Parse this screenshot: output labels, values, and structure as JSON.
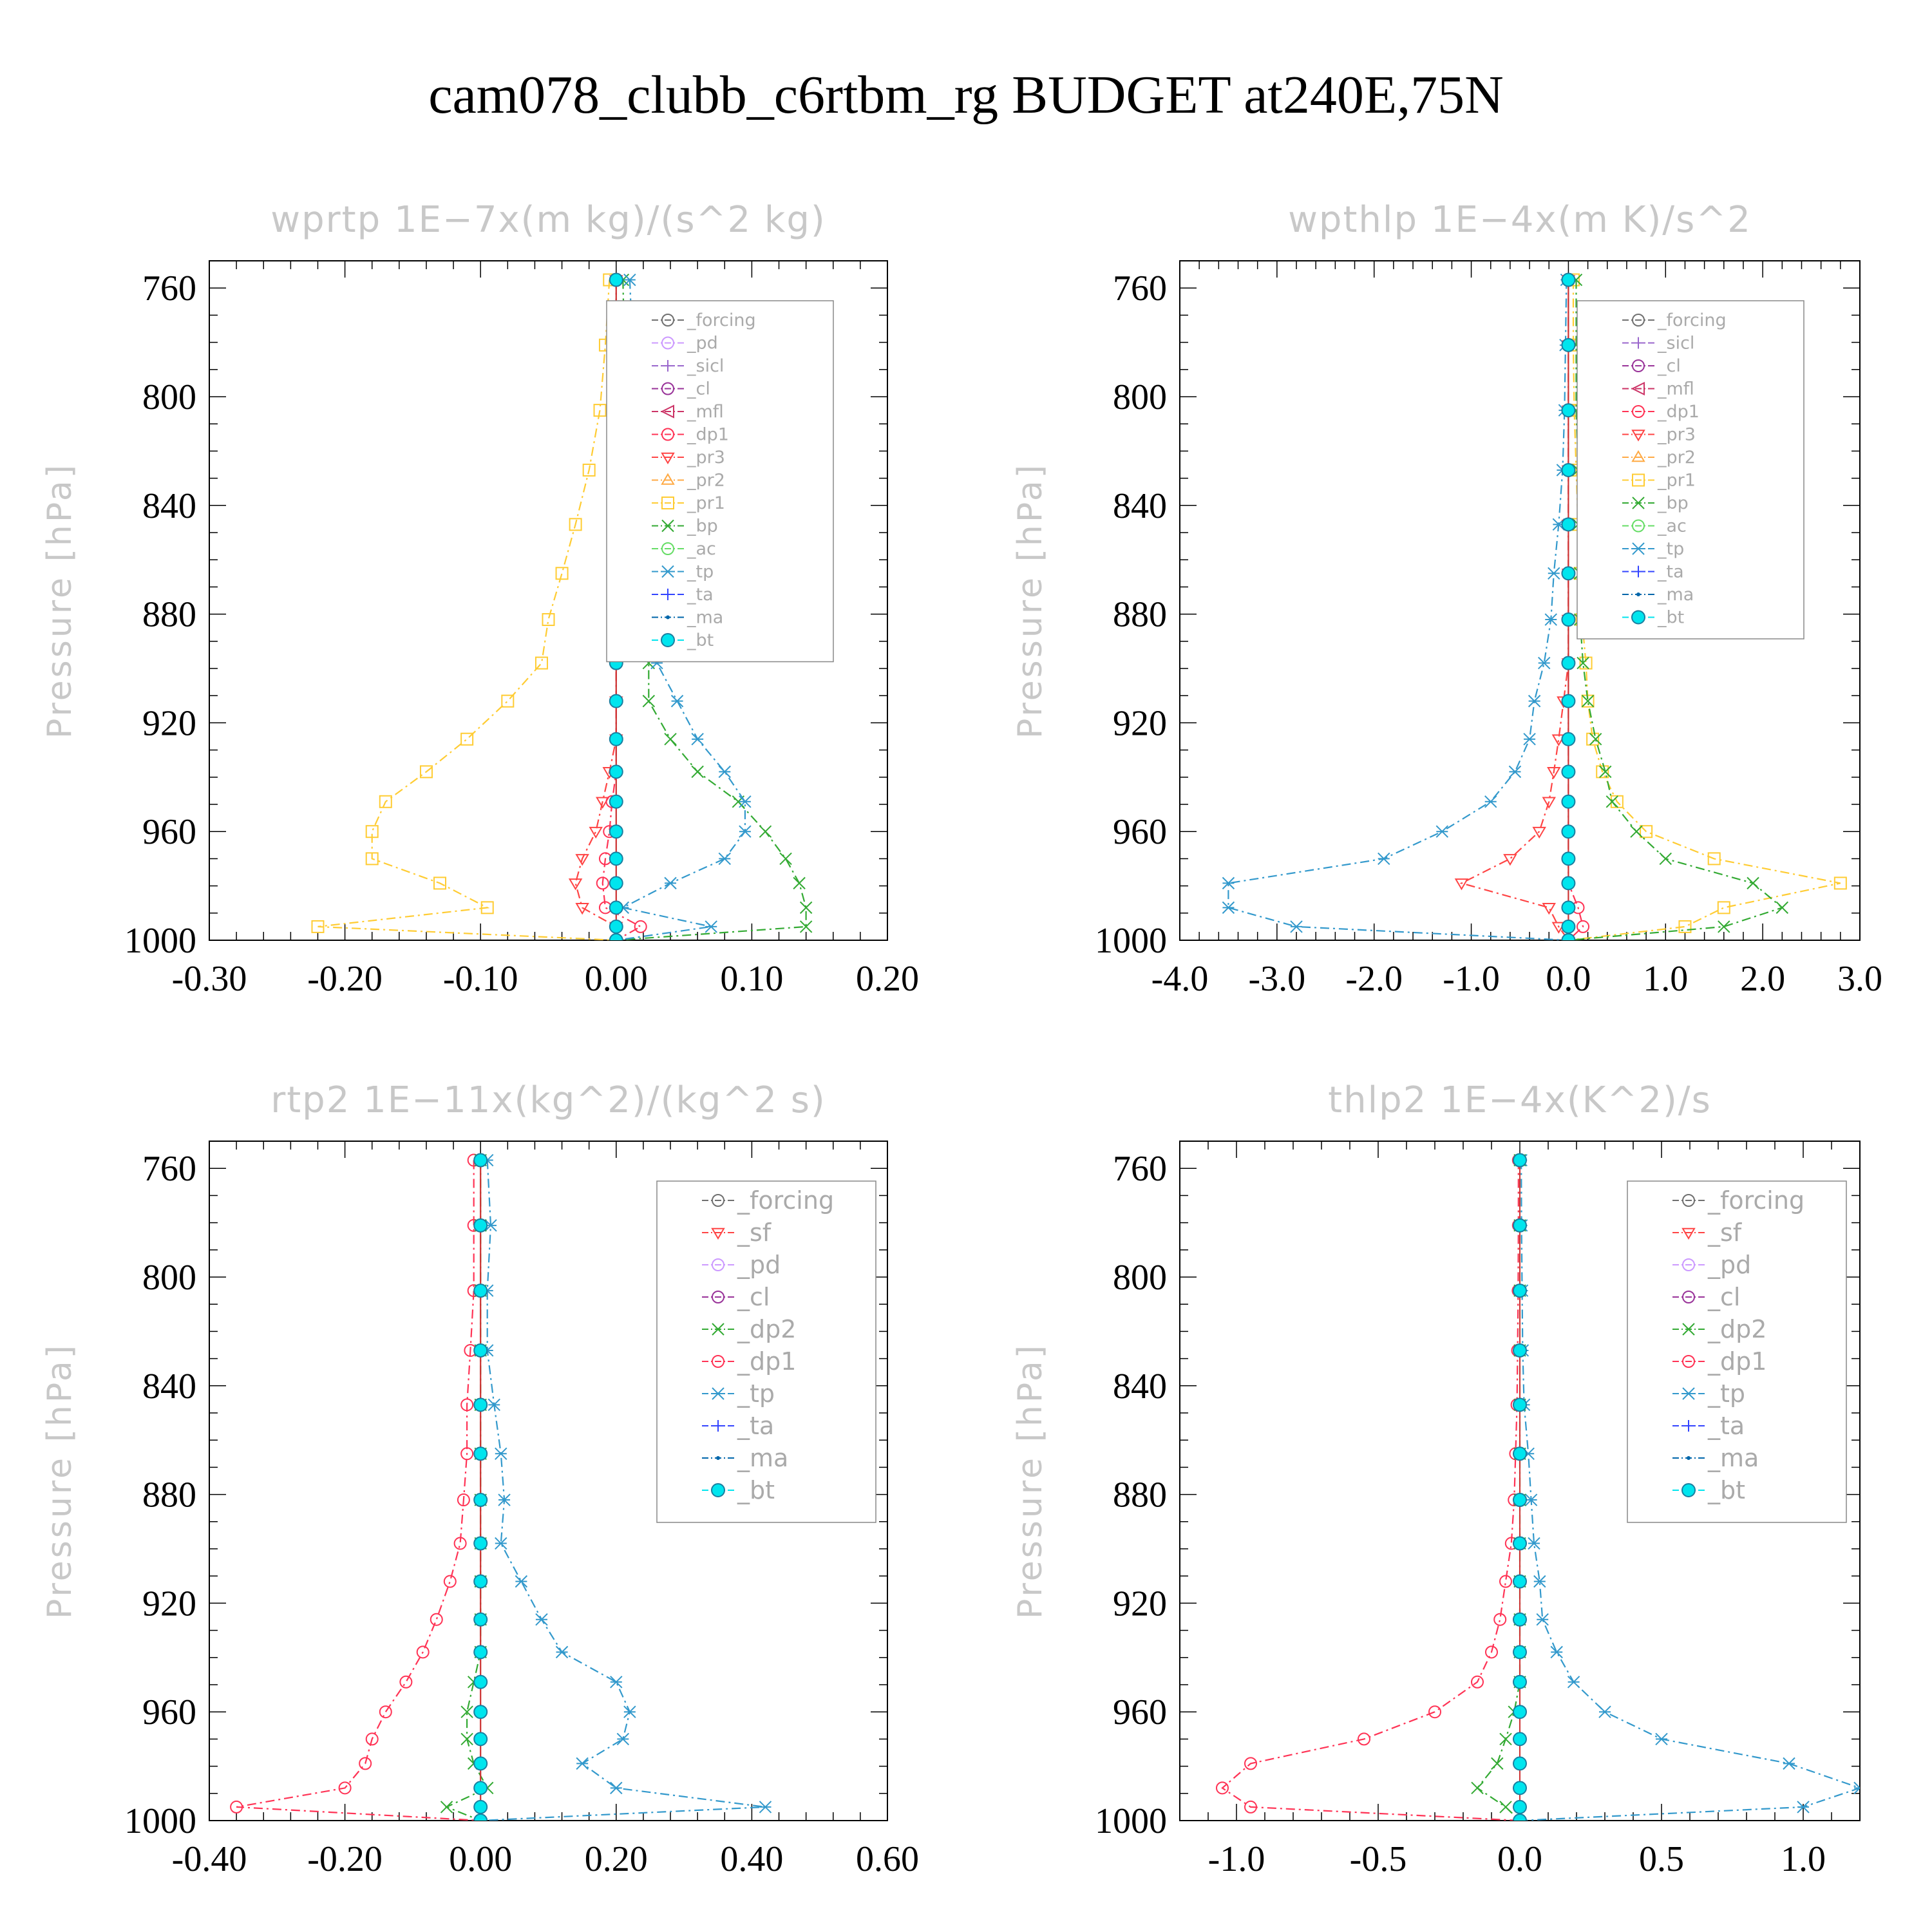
{
  "figure_title": "cam078_clubb_c6rtbm_rg  BUDGET at240E,75N",
  "colors": {
    "_forcing": "#707070",
    "_pd": "#cc99ff",
    "_sicl": "#9966cc",
    "_cl": "#993399",
    "_mfl": "#cc3366",
    "_dp1": "#ff3355",
    "_pr3": "#ff4444",
    "_pr2": "#ffaa44",
    "_pr1": "#ffcc33",
    "_bp": "#33aa33",
    "_ac": "#66dd66",
    "_tp": "#3399cc",
    "_ta": "#3344ff",
    "_ma": "#0066aa",
    "_bt": "#00e5ee",
    "_sf": "#ff4444",
    "_dp2": "#33aa33"
  },
  "chart_data": [
    {
      "type": "line",
      "title": "wprtp   1E−7x(m kg)/(s^2 kg)",
      "ylabel": "Pressure [hPa]",
      "xlim": [
        -0.3,
        0.2
      ],
      "ylim": [
        1000,
        750
      ],
      "xticks": [
        "-0.30",
        "-0.20",
        "-0.10",
        "0.00",
        "0.10",
        "0.20"
      ],
      "yticks": [
        "760",
        "800",
        "840",
        "880",
        "920",
        "960",
        "1000"
      ],
      "y": [
        757,
        781,
        805,
        827,
        847,
        865,
        882,
        898,
        912,
        926,
        938,
        949,
        960,
        970,
        979,
        988,
        995,
        1000
      ],
      "legend": [
        "_forcing",
        "_pd",
        "_sicl",
        "_cl",
        "_mfl",
        "_dp1",
        "_pr3",
        "_pr2",
        "_pr1",
        "_bp",
        "_ac",
        "_tp",
        "_ta",
        "_ma",
        "_bt"
      ],
      "series": [
        {
          "name": "_pr1",
          "values": [
            -0.005,
            -0.008,
            -0.012,
            -0.02,
            -0.03,
            -0.04,
            -0.05,
            -0.055,
            -0.08,
            -0.11,
            -0.14,
            -0.17,
            -0.18,
            -0.18,
            -0.13,
            -0.095,
            -0.22,
            0
          ]
        },
        {
          "name": "_bp",
          "values": [
            0.005,
            0.006,
            0.008,
            0.01,
            0.014,
            0.02,
            0.026,
            0.024,
            0.024,
            0.04,
            0.06,
            0.09,
            0.11,
            0.125,
            0.135,
            0.14,
            0.14,
            0
          ]
        },
        {
          "name": "_tp",
          "values": [
            0.01,
            0.012,
            0.01,
            0.01,
            0.018,
            0.025,
            0.022,
            0.03,
            0.045,
            0.06,
            0.08,
            0.095,
            0.095,
            0.08,
            0.04,
            0.005,
            0.07,
            0
          ]
        },
        {
          "name": "_pr3",
          "values": [
            0,
            0,
            0,
            0,
            0,
            0,
            0,
            0,
            0,
            0,
            -0.005,
            -0.01,
            -0.015,
            -0.025,
            -0.03,
            -0.025,
            0,
            0
          ]
        },
        {
          "name": "_dp1",
          "values": [
            0,
            0,
            0,
            0,
            0,
            0,
            0,
            0,
            0,
            0,
            0,
            -0.003,
            -0.005,
            -0.008,
            -0.01,
            -0.008,
            0.018,
            0
          ]
        },
        {
          "name": "_forcing",
          "values": [
            0,
            0,
            0,
            0,
            0,
            0,
            0,
            0,
            0,
            0,
            0,
            0,
            0,
            0,
            0,
            0,
            0,
            0
          ]
        },
        {
          "name": "_bt",
          "values": [
            0,
            0,
            0,
            0,
            0,
            0,
            0,
            0,
            0,
            0,
            0,
            0,
            0,
            0,
            0,
            0,
            0,
            0
          ]
        }
      ]
    },
    {
      "type": "line",
      "title": "wpthlp   1E−4x(m K)/s^2",
      "ylabel": "Pressure [hPa]",
      "xlim": [
        -4.0,
        3.0
      ],
      "ylim": [
        1000,
        750
      ],
      "xticks": [
        "-4.0",
        "-3.0",
        "-2.0",
        "-1.0",
        "0.0",
        "1.0",
        "2.0",
        "3.0"
      ],
      "yticks": [
        "760",
        "800",
        "840",
        "880",
        "920",
        "960",
        "1000"
      ],
      "y": [
        757,
        781,
        805,
        827,
        847,
        865,
        882,
        898,
        912,
        926,
        938,
        949,
        960,
        970,
        979,
        988,
        995,
        1000
      ],
      "legend": [
        "_forcing",
        "_sicl",
        "_cl",
        "_mfl",
        "_dp1",
        "_pr3",
        "_pr2",
        "_pr1",
        "_bp",
        "_ac",
        "_tp",
        "_ta",
        "_ma",
        "_bt"
      ],
      "series": [
        {
          "name": "_tp",
          "values": [
            -0.02,
            -0.03,
            -0.04,
            -0.06,
            -0.1,
            -0.15,
            -0.18,
            -0.25,
            -0.35,
            -0.4,
            -0.55,
            -0.8,
            -1.3,
            -1.9,
            -3.5,
            -3.5,
            -2.8,
            0
          ]
        },
        {
          "name": "_pr3",
          "values": [
            0,
            0,
            0,
            0,
            0,
            0,
            0,
            0,
            -0.05,
            -0.1,
            -0.15,
            -0.2,
            -0.3,
            -0.6,
            -1.1,
            -0.2,
            -0.1,
            0
          ]
        },
        {
          "name": "_pr1",
          "values": [
            0.05,
            0.05,
            0.06,
            0.08,
            0.1,
            0.12,
            0.14,
            0.18,
            0.2,
            0.25,
            0.35,
            0.5,
            0.8,
            1.5,
            2.8,
            1.6,
            1.2,
            0
          ]
        },
        {
          "name": "_bp",
          "values": [
            0.08,
            0.08,
            0.08,
            0.1,
            0.1,
            0.12,
            0.12,
            0.15,
            0.2,
            0.28,
            0.38,
            0.45,
            0.7,
            1.0,
            1.9,
            2.2,
            1.6,
            0
          ]
        },
        {
          "name": "_dp1",
          "values": [
            0,
            0,
            0,
            0,
            0,
            0,
            0,
            0,
            0,
            0,
            0,
            0,
            0,
            0,
            0,
            0.1,
            0.15,
            0
          ]
        },
        {
          "name": "_forcing",
          "values": [
            0,
            0,
            0,
            0,
            0,
            0,
            0,
            0,
            0,
            0,
            0,
            0,
            0,
            0,
            0,
            0,
            0,
            0
          ]
        },
        {
          "name": "_bt",
          "values": [
            0,
            0,
            0,
            0,
            0,
            0,
            0,
            0,
            0,
            0,
            0,
            0,
            0,
            0,
            0,
            0,
            0,
            0
          ]
        }
      ]
    },
    {
      "type": "line",
      "title": "rtp2   1E−11x(kg^2)/(kg^2 s)",
      "ylabel": "Pressure [hPa]",
      "xlim": [
        -0.4,
        0.6
      ],
      "ylim": [
        1000,
        750
      ],
      "xticks": [
        "-0.40",
        "-0.20",
        "0.00",
        "0.20",
        "0.40",
        "0.60"
      ],
      "yticks": [
        "760",
        "800",
        "840",
        "880",
        "920",
        "960",
        "1000"
      ],
      "y": [
        757,
        781,
        805,
        827,
        847,
        865,
        882,
        898,
        912,
        926,
        938,
        949,
        960,
        970,
        979,
        988,
        995,
        1000
      ],
      "legend": [
        "_forcing",
        "_sf",
        "_pd",
        "_cl",
        "_dp2",
        "_dp1",
        "_tp",
        "_ta",
        "_ma",
        "_bt"
      ],
      "series": [
        {
          "name": "_dp1",
          "values": [
            -0.01,
            -0.01,
            -0.01,
            -0.015,
            -0.02,
            -0.02,
            -0.025,
            -0.03,
            -0.045,
            -0.065,
            -0.085,
            -0.11,
            -0.14,
            -0.16,
            -0.17,
            -0.2,
            -0.36,
            0
          ]
        },
        {
          "name": "_tp",
          "values": [
            0.01,
            0.015,
            0.01,
            0.01,
            0.02,
            0.03,
            0.035,
            0.03,
            0.06,
            0.09,
            0.12,
            0.2,
            0.22,
            0.21,
            0.15,
            0.2,
            0.42,
            0
          ]
        },
        {
          "name": "_dp2",
          "values": [
            0,
            0,
            0,
            0,
            0,
            0,
            0,
            0,
            0,
            0,
            0,
            -0.01,
            -0.02,
            -0.02,
            -0.01,
            0.01,
            -0.05,
            0
          ]
        },
        {
          "name": "_forcing",
          "values": [
            0,
            0,
            0,
            0,
            0,
            0,
            0,
            0,
            0,
            0,
            0,
            0,
            0,
            0,
            0,
            0,
            0,
            0
          ]
        },
        {
          "name": "_bt",
          "values": [
            0,
            0,
            0,
            0,
            0,
            0,
            0,
            0,
            0,
            0,
            0,
            0,
            0,
            0,
            0,
            0,
            0,
            0
          ]
        }
      ]
    },
    {
      "type": "line",
      "title": "thlp2   1E−4x(K^2)/s",
      "ylabel": "Pressure [hPa]",
      "xlim": [
        -1.2,
        1.2
      ],
      "ylim": [
        1000,
        750
      ],
      "xticks": [
        "-1.0",
        "-0.5",
        "0.0",
        "0.5",
        "1.0"
      ],
      "yticks": [
        "760",
        "800",
        "840",
        "880",
        "920",
        "960",
        "1000"
      ],
      "y": [
        757,
        781,
        805,
        827,
        847,
        865,
        882,
        898,
        912,
        926,
        938,
        949,
        960,
        970,
        979,
        988,
        995,
        1000
      ],
      "legend": [
        "_forcing",
        "_sf",
        "_pd",
        "_cl",
        "_dp2",
        "_dp1",
        "_tp",
        "_ta",
        "_ma",
        "_bt"
      ],
      "series": [
        {
          "name": "_dp1",
          "values": [
            -0.005,
            -0.005,
            -0.006,
            -0.008,
            -0.01,
            -0.015,
            -0.02,
            -0.03,
            -0.05,
            -0.07,
            -0.1,
            -0.15,
            -0.3,
            -0.55,
            -0.95,
            -1.05,
            -0.95,
            0
          ]
        },
        {
          "name": "_tp",
          "values": [
            0.005,
            0.006,
            0.008,
            0.01,
            0.015,
            0.03,
            0.04,
            0.05,
            0.07,
            0.08,
            0.13,
            0.19,
            0.3,
            0.5,
            0.95,
            1.2,
            1.0,
            0
          ]
        },
        {
          "name": "_dp2",
          "values": [
            0,
            0,
            0,
            0,
            0,
            0,
            0,
            0,
            0,
            0,
            0,
            0,
            -0.02,
            -0.05,
            -0.08,
            -0.15,
            -0.05,
            0
          ]
        },
        {
          "name": "_forcing",
          "values": [
            0,
            0,
            0,
            0,
            0,
            0,
            0,
            0,
            0,
            0,
            0,
            0,
            0,
            0,
            0,
            0,
            0,
            0
          ]
        },
        {
          "name": "_bt",
          "values": [
            0,
            0,
            0,
            0,
            0,
            0,
            0,
            0,
            0,
            0,
            0,
            0,
            0,
            0,
            0,
            0,
            0,
            0
          ]
        }
      ]
    }
  ]
}
